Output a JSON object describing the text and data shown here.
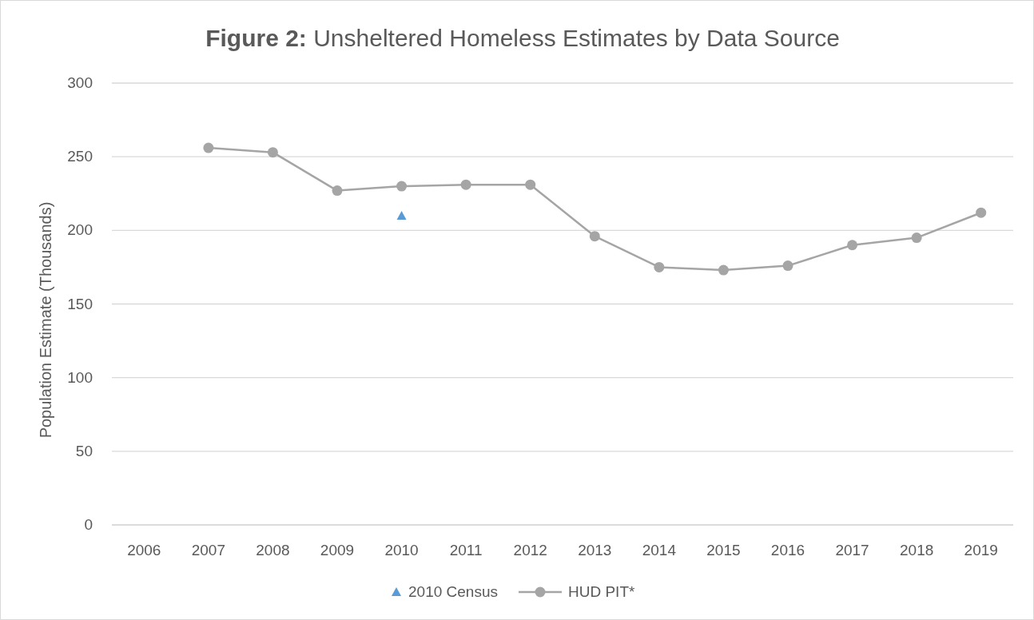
{
  "chart_data": {
    "type": "line",
    "title": "Figure 2: Unsheltered Homeless Estimates by Data Source",
    "ylabel": "Population Estimate (Thousands)",
    "categories": [
      "2006",
      "2007",
      "2008",
      "2009",
      "2010",
      "2011",
      "2012",
      "2013",
      "2014",
      "2015",
      "2016",
      "2017",
      "2018",
      "2019"
    ],
    "series": [
      {
        "name": "2010 Census",
        "type": "scatter",
        "marker": "triangle",
        "color": "#5b9bd5",
        "values": [
          null,
          null,
          null,
          null,
          210,
          null,
          null,
          null,
          null,
          null,
          null,
          null,
          null,
          null
        ]
      },
      {
        "name": "HUD PIT*",
        "marker": "circle",
        "color": "#a5a5a5",
        "values": [
          null,
          256,
          253,
          227,
          230,
          231,
          231,
          196,
          175,
          173,
          176,
          190,
          195,
          212
        ]
      }
    ],
    "ylim": [
      0,
      300
    ],
    "yticks": [
      0,
      50,
      100,
      150,
      200,
      250,
      300
    ],
    "grid": "y",
    "legend": "bottom"
  }
}
